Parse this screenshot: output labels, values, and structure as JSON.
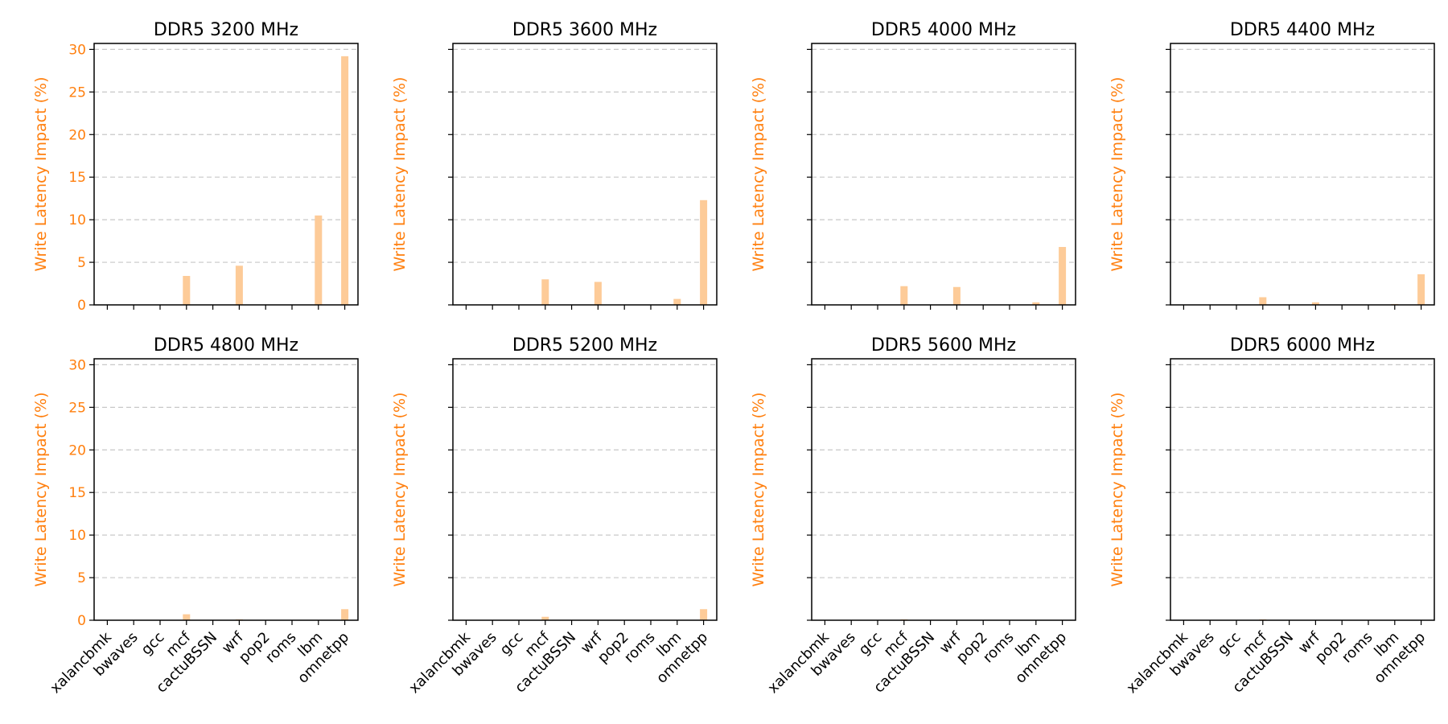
{
  "chart_data": {
    "type": "bar",
    "layout": "2x4 grid, shared y-axis per row, shared x-axis per column",
    "categories": [
      "xalancbmk",
      "bwaves",
      "gcc",
      "mcf",
      "cactuBSSN",
      "wrf",
      "pop2",
      "roms",
      "lbm",
      "omnetpp"
    ],
    "ylabel": "Write Latency Impact (%)",
    "ylim": [
      0,
      30.7
    ],
    "yticks": [
      0,
      5,
      10,
      15,
      20,
      25,
      30
    ],
    "grid": "horizontal dashed",
    "colors": {
      "bar": "#FDCB98",
      "axis_label": "#FF7F0E",
      "grid": "#C8C8C8",
      "frame": "#000000"
    },
    "panels": [
      {
        "title": "DDR5 3200 MHz",
        "values": [
          0,
          0,
          0,
          3.4,
          0,
          4.6,
          0,
          0,
          10.5,
          29.2
        ]
      },
      {
        "title": "DDR5 3600 MHz",
        "values": [
          0,
          0,
          0,
          3.0,
          0,
          2.7,
          0,
          0,
          0.7,
          12.3
        ]
      },
      {
        "title": "DDR5 4000 MHz",
        "values": [
          0,
          0,
          0,
          2.2,
          0,
          2.1,
          0,
          0,
          0.3,
          6.8
        ]
      },
      {
        "title": "DDR5 4400 MHz",
        "values": [
          0,
          0,
          0,
          0.9,
          0,
          0.3,
          0,
          0,
          0.1,
          3.6
        ]
      },
      {
        "title": "DDR5 4800 MHz",
        "values": [
          0,
          0,
          0,
          0.7,
          0,
          0.1,
          0,
          0,
          0,
          1.3
        ]
      },
      {
        "title": "DDR5 5200 MHz",
        "values": [
          0,
          0,
          0,
          0.4,
          0,
          0,
          0,
          0,
          0,
          1.3
        ]
      },
      {
        "title": "DDR5 5600 MHz",
        "values": [
          0,
          0,
          0,
          0.1,
          0,
          0,
          0,
          0,
          0,
          0
        ]
      },
      {
        "title": "DDR5 6000 MHz",
        "values": [
          0,
          0,
          0,
          0.1,
          0,
          0,
          0,
          0,
          0,
          0
        ]
      }
    ]
  }
}
